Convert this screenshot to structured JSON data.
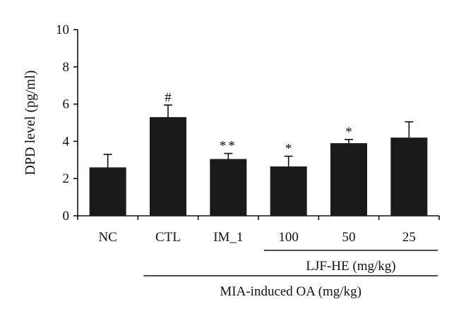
{
  "chart_data": {
    "type": "bar",
    "title": "",
    "xlabel": "",
    "ylabel": "DPD level (pg/ml)",
    "ylim": [
      0,
      10
    ],
    "yticks": [
      0,
      2,
      4,
      6,
      8,
      10
    ],
    "grid": false,
    "categories": [
      "NC",
      "CTL",
      "IM_1",
      "100",
      "50",
      "25"
    ],
    "values": [
      2.6,
      5.3,
      3.05,
      2.65,
      3.9,
      4.2
    ],
    "errors": [
      0.7,
      0.65,
      0.3,
      0.55,
      0.2,
      0.85
    ],
    "significance": [
      "",
      "#",
      "**",
      "*",
      "*",
      ""
    ],
    "bar_color": "#1a1a1a",
    "groups": [
      {
        "label": "LJF-HE (mg/kg)",
        "from_index": 3,
        "to_index": 5
      },
      {
        "label": "MIA-induced OA (mg/kg)",
        "from_index": 1,
        "to_index": 5
      }
    ]
  }
}
